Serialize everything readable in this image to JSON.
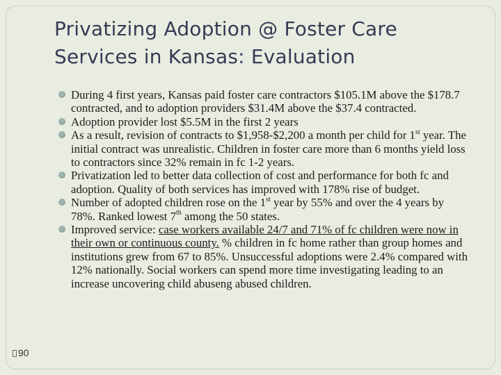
{
  "slide": {
    "title_line1": "Privatizing Adoption @ Foster Care",
    "title_line2": "Services in Kansas: Evaluation",
    "page_number": "90"
  },
  "bullets": [
    {
      "text": "During 4 first years, Kansas paid foster care contractors $105.1M above the $178.7 contracted, and to adoption providers $31.4M above the $37.4 contracted."
    },
    {
      "text": "Adoption provider lost $5.5M in the first 2 years"
    },
    {
      "a": "As a result, revision of contracts to $1,958-$2,200 a month per child for 1",
      "sup": "st",
      "b": " year.  The initial contract was unrealistic.  Children in foster care more than 6 months yield loss to contractors since 32% remain in fc 1-2 years."
    },
    {
      "text": "Privatization led to better data collection of cost and performance for both fc and adoption.  Quality of both services has improved with 178% rise of budget."
    },
    {
      "a": "Number of adopted children rose on the 1",
      "sup1": "st",
      "b": " year by 55% and over the 4 years by 78%.  Ranked lowest 7",
      "sup2": "th",
      "c": " among the 50 states."
    },
    {
      "a": "Improved service: ",
      "underlined": "case workers available 24/7 and 71% of fc children were now in their own or continuous county.",
      "b": "  % children in fc home rather than group homes and institutions grew from 67 to 85%.  Unsuccessful adoptions were 2.4% compared  with 12% nationally.  Social workers can spend more time investigating leading to an increase uncovering child abuseng abused children."
    }
  ]
}
